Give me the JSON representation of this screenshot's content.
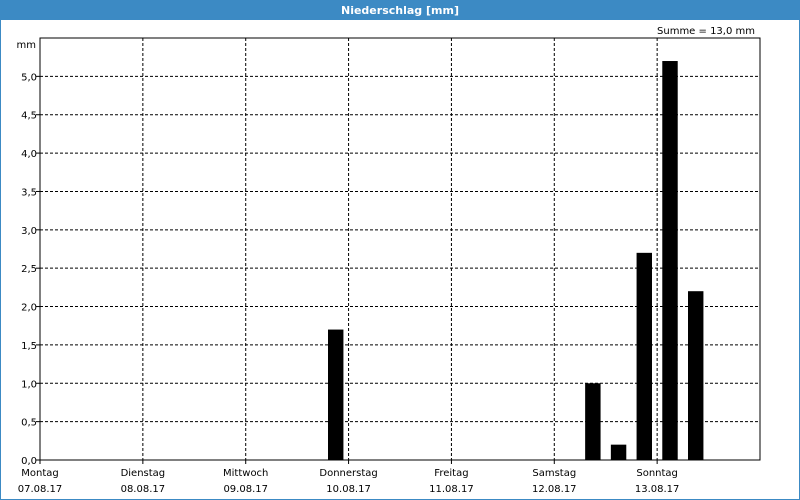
{
  "window": {
    "title": "Niederschlag [mm]"
  },
  "chart_data": {
    "type": "bar",
    "title": "Niederschlag [mm]",
    "ylabel": "mm",
    "summary": "Summe = 13,0 mm",
    "ylim": [
      0,
      5.5
    ],
    "yticks": [
      "0,0",
      "0,5",
      "1,0",
      "1,5",
      "2,0",
      "2,5",
      "3,0",
      "3,5",
      "4,0",
      "4,5",
      "5,0"
    ],
    "xlim_days": [
      0,
      7
    ],
    "days": [
      {
        "name": "Montag",
        "date": "07.08.17"
      },
      {
        "name": "Dienstag",
        "date": "08.08.17"
      },
      {
        "name": "Mittwoch",
        "date": "09.08.17"
      },
      {
        "name": "Donnerstag",
        "date": "10.08.17"
      },
      {
        "name": "Freitag",
        "date": "11.08.17"
      },
      {
        "name": "Samstag",
        "date": "12.08.17"
      },
      {
        "name": "Sonntag",
        "date": "13.08.17"
      }
    ],
    "bars": [
      {
        "start": "09.08.17 18:00",
        "end": "10.08.17 00:00",
        "value": 1.7
      },
      {
        "start": "12.08.17 06:00",
        "end": "12.08.17 12:00",
        "value": 1.0
      },
      {
        "start": "12.08.17 12:00",
        "end": "12.08.17 18:00",
        "value": 0.2
      },
      {
        "start": "12.08.17 18:00",
        "end": "13.08.17 00:00",
        "value": 2.7
      },
      {
        "start": "13.08.17 00:00",
        "end": "13.08.17 06:00",
        "value": 5.2
      },
      {
        "start": "13.08.17 06:00",
        "end": "13.08.17 12:00",
        "value": 2.2
      }
    ],
    "grid": true,
    "colors": {
      "bar": "#000000",
      "titlebar": "#3c8ac4"
    }
  }
}
